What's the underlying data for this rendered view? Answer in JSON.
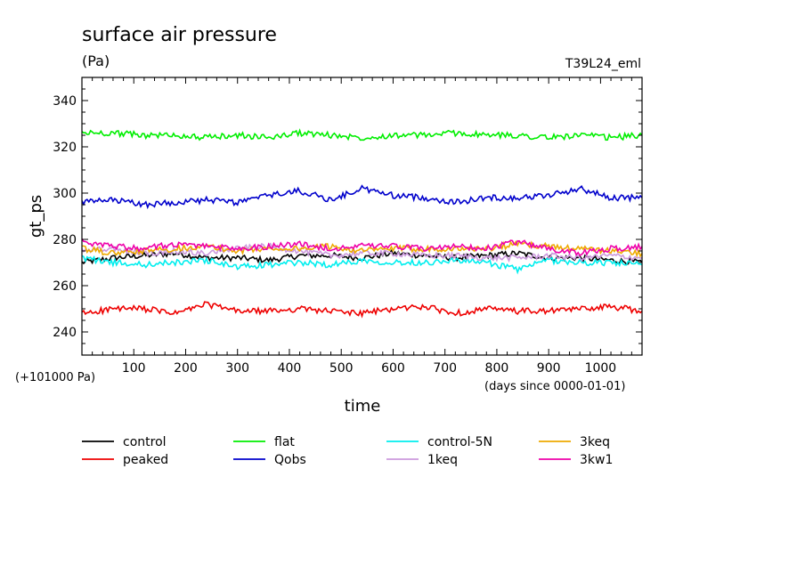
{
  "chart_data": {
    "type": "line",
    "title": "surface air pressure",
    "unit_label": "(Pa)",
    "run_label": "T39L24_eml",
    "ylabel": "gt_ps",
    "xlabel": "time",
    "offset_label": "(+101000 Pa)",
    "x_note": "(days since 0000-01-01)",
    "xlim": [
      0,
      1080
    ],
    "ylim": [
      230,
      350
    ],
    "x_ticks": [
      100,
      200,
      300,
      400,
      500,
      600,
      700,
      800,
      900,
      1000
    ],
    "y_ticks": [
      240,
      260,
      280,
      300,
      320,
      340
    ],
    "grid": false,
    "legend_position": "bottom",
    "series": [
      {
        "name": "control",
        "color": "#000000",
        "x": [
          0,
          60,
          120,
          180,
          240,
          300,
          360,
          420,
          480,
          540,
          600,
          660,
          720,
          780,
          840,
          900,
          960,
          1020,
          1080
        ],
        "y": [
          270,
          272,
          273,
          274,
          272,
          272,
          271,
          273,
          273,
          272,
          274,
          273,
          272,
          273,
          274,
          272,
          272,
          271,
          270
        ]
      },
      {
        "name": "peaked",
        "color": "#ee0000",
        "x": [
          0,
          60,
          120,
          180,
          240,
          300,
          360,
          420,
          480,
          540,
          600,
          660,
          720,
          780,
          840,
          900,
          960,
          1020,
          1080
        ],
        "y": [
          248,
          250,
          250,
          248,
          252,
          249,
          249,
          250,
          249,
          248,
          250,
          251,
          248,
          250,
          249,
          249,
          250,
          251,
          249
        ]
      },
      {
        "name": "flat",
        "color": "#00ee00",
        "x": [
          0,
          60,
          120,
          180,
          240,
          300,
          360,
          420,
          480,
          540,
          600,
          660,
          720,
          780,
          840,
          900,
          960,
          1020,
          1080
        ],
        "y": [
          326,
          326,
          325,
          325,
          324,
          325,
          324,
          326,
          325,
          324,
          325,
          325,
          326,
          325,
          325,
          324,
          325,
          324,
          325
        ]
      },
      {
        "name": "Qobs",
        "color": "#0000cc",
        "x": [
          0,
          60,
          120,
          180,
          240,
          300,
          360,
          420,
          480,
          540,
          600,
          660,
          720,
          780,
          840,
          900,
          960,
          1020,
          1080
        ],
        "y": [
          296,
          297,
          295,
          296,
          297,
          296,
          299,
          301,
          297,
          302,
          299,
          298,
          296,
          298,
          298,
          299,
          302,
          298,
          298
        ]
      },
      {
        "name": "control-5N",
        "color": "#00eeee",
        "x": [
          0,
          60,
          120,
          180,
          240,
          300,
          360,
          420,
          480,
          540,
          600,
          660,
          720,
          780,
          840,
          900,
          960,
          1020,
          1080
        ],
        "y": [
          272,
          270,
          269,
          270,
          271,
          268,
          269,
          270,
          269,
          271,
          270,
          270,
          271,
          270,
          267,
          271,
          270,
          270,
          269
        ]
      },
      {
        "name": "1keq",
        "color": "#cc99dd",
        "x": [
          0,
          60,
          120,
          180,
          240,
          300,
          360,
          420,
          480,
          540,
          600,
          660,
          720,
          780,
          840,
          900,
          960,
          1020,
          1080
        ],
        "y": [
          275,
          276,
          274,
          275,
          274,
          276,
          277,
          275,
          273,
          274,
          274,
          273,
          273,
          272,
          272,
          273,
          272,
          273,
          272
        ]
      },
      {
        "name": "3keq",
        "color": "#eeaa00",
        "x": [
          0,
          60,
          120,
          180,
          240,
          300,
          360,
          420,
          480,
          540,
          600,
          660,
          720,
          780,
          840,
          900,
          960,
          1020,
          1080
        ],
        "y": [
          276,
          274,
          275,
          276,
          277,
          275,
          276,
          276,
          277,
          275,
          276,
          276,
          276,
          276,
          278,
          277,
          276,
          275,
          274
        ]
      },
      {
        "name": "3kw1",
        "color": "#ee00aa",
        "x": [
          0,
          60,
          120,
          180,
          240,
          300,
          360,
          420,
          480,
          540,
          600,
          660,
          720,
          780,
          840,
          900,
          960,
          1020,
          1080
        ],
        "y": [
          279,
          277,
          276,
          278,
          277,
          276,
          277,
          278,
          276,
          277,
          277,
          276,
          277,
          276,
          279,
          276,
          274,
          276,
          277
        ]
      }
    ]
  }
}
